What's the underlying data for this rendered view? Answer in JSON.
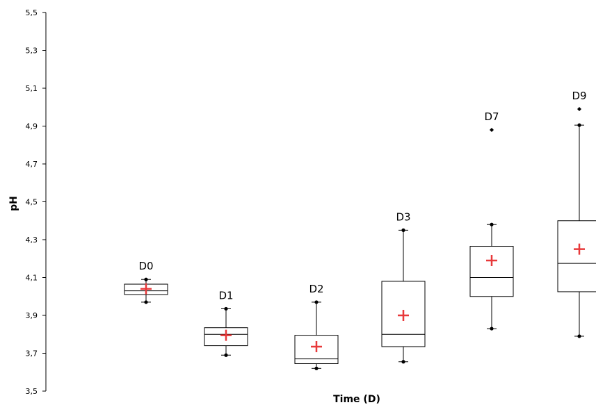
{
  "chart_data": {
    "type": "box",
    "title": "",
    "xlabel": "Time (D)",
    "ylabel": "pH",
    "ylim": [
      3.5,
      5.5
    ],
    "yticks": [
      "3,5",
      "3,7",
      "3,9",
      "4,1",
      "4,3",
      "4,5",
      "4,7",
      "4,9",
      "5,1",
      "5,3",
      "5,5"
    ],
    "ytick_values": [
      3.5,
      3.7,
      3.9,
      4.1,
      4.3,
      4.5,
      4.7,
      4.9,
      5.1,
      5.3,
      5.5
    ],
    "grid": false,
    "mean_color": "#e8393a",
    "box_color": "#000000",
    "categories": [
      "D0",
      "D1",
      "D2",
      "D3",
      "D7",
      "D9"
    ],
    "boxes": [
      {
        "label": "D0",
        "min": 3.97,
        "q1": 4.01,
        "median": 4.03,
        "q3": 4.065,
        "max": 4.09,
        "mean": 4.04,
        "outliers": []
      },
      {
        "label": "D1",
        "min": 3.69,
        "q1": 3.74,
        "median": 3.8,
        "q3": 3.835,
        "max": 3.935,
        "mean": 3.795,
        "outliers": []
      },
      {
        "label": "D2",
        "min": 3.62,
        "q1": 3.645,
        "median": 3.67,
        "q3": 3.795,
        "max": 3.97,
        "mean": 3.735,
        "outliers": []
      },
      {
        "label": "D3",
        "min": 3.655,
        "q1": 3.735,
        "median": 3.8,
        "q3": 4.08,
        "max": 4.35,
        "mean": 3.9,
        "outliers": []
      },
      {
        "label": "D7",
        "min": 3.83,
        "q1": 4.0,
        "median": 4.1,
        "q3": 4.265,
        "max": 4.38,
        "mean": 4.19,
        "outliers": [
          4.88
        ]
      },
      {
        "label": "D9",
        "min": 3.79,
        "q1": 4.025,
        "median": 4.175,
        "q3": 4.4,
        "max": 4.905,
        "mean": 4.25,
        "outliers": [
          4.99
        ]
      }
    ]
  }
}
